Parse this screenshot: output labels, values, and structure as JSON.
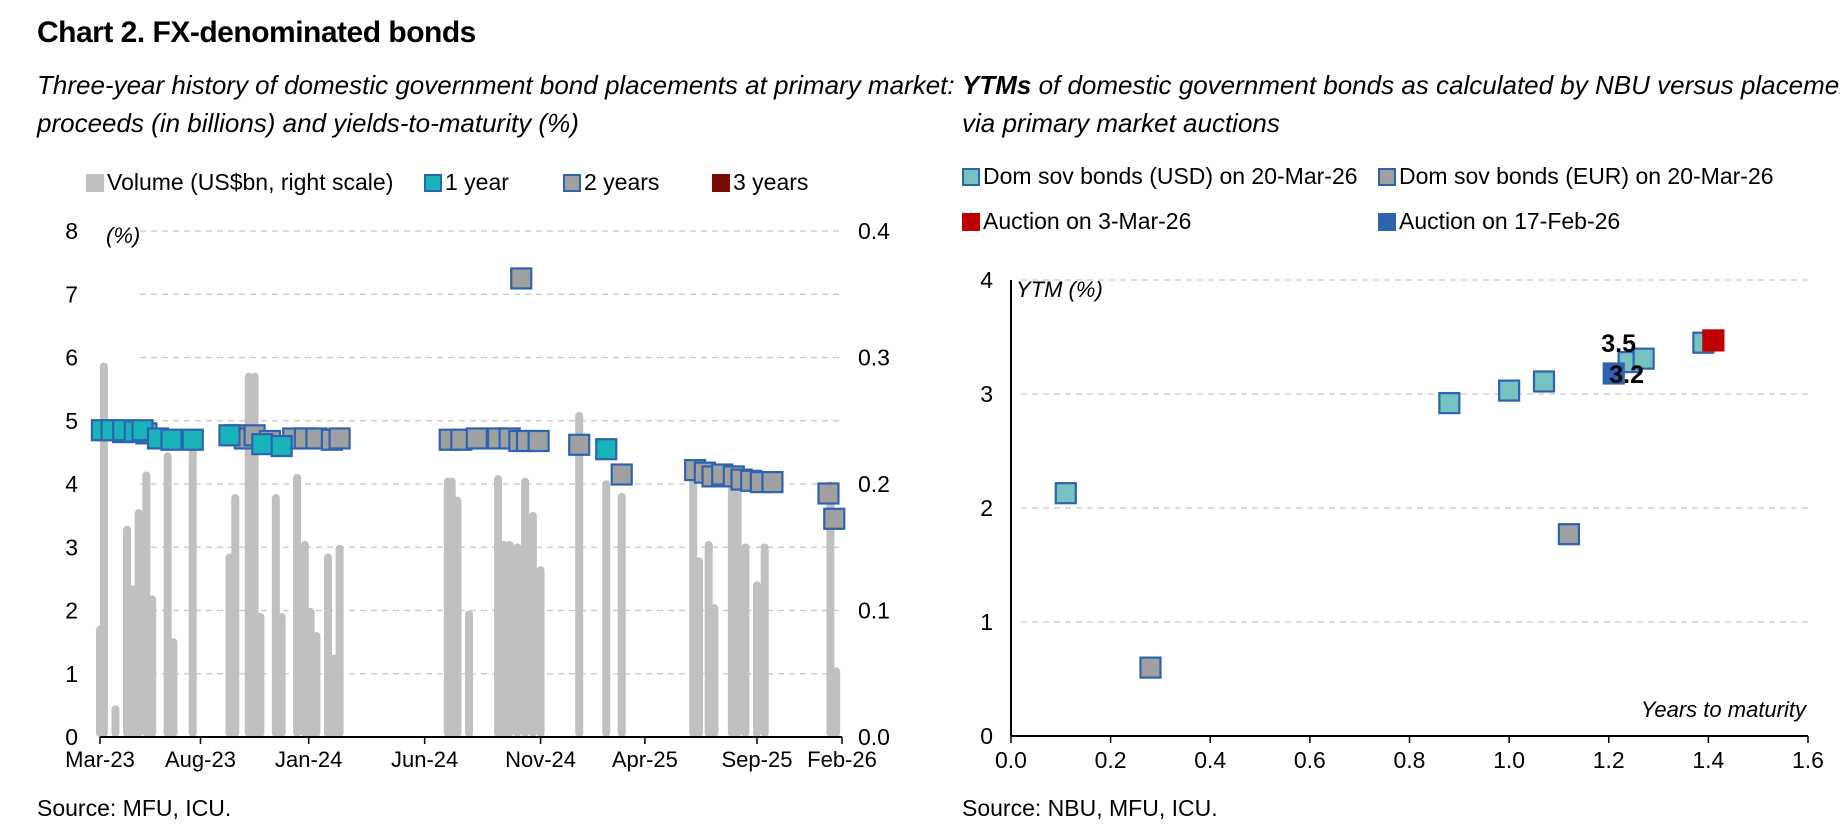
{
  "title": "Chart 2. FX-denominated bonds",
  "left": {
    "subtitle_line1": "Three-year history of domestic government bond placements at primary market:",
    "subtitle_line2": "proceeds (in billions) and yields-to-maturity (%)",
    "legend": [
      "Volume (US$bn, right scale)",
      "1 year",
      "2 years",
      "3 years"
    ],
    "source": "Source: MFU, ICU."
  },
  "right": {
    "subtitle_bold": "YTMs",
    "subtitle_rest": " of domestic government bonds as calculated by NBU versus placements",
    "subtitle_line2": "via primary market auctions",
    "legend": [
      "Dom sov bonds (USD) on 20-Mar-26",
      "Dom sov bonds (EUR) on 20-Mar-26",
      "Auction on 3-Mar-26",
      "Auction on 17-Feb-26"
    ],
    "source": "Source: NBU, MFU, ICU."
  },
  "colors": {
    "volume": "#c0c0c0",
    "one_year": "#19b4b9",
    "two_years": "#a0a0a0",
    "three_years": "#7a0c0c",
    "usd": "#76c2c0",
    "eur": "#a0a0a0",
    "auction_mar": "#c00000",
    "auction_feb": "#2e63b0",
    "edge": "#2e63b0",
    "grid": "#c8c8c8"
  },
  "chart_data": [
    {
      "type": "bar",
      "title": "Three-year history of domestic government bond placements at primary market: proceeds (in billions) and yields-to-maturity (%)",
      "ylabel": "(%)",
      "ylim": [
        0,
        8
      ],
      "yticks": [
        "0",
        "1",
        "2",
        "3",
        "4",
        "5",
        "6",
        "7",
        "8"
      ],
      "y2lim": [
        0,
        0.4
      ],
      "y2ticks": [
        "0.0",
        "0.1",
        "0.2",
        "0.3",
        "0.4"
      ],
      "x_tick_labels": [
        "Mar-23",
        "Aug-23",
        "Jan-24",
        "Jun-24",
        "Nov-24",
        "Apr-25",
        "Sep-25",
        "Feb-26"
      ],
      "grid": true,
      "legend_position": "top",
      "volume_series": {
        "name": "Volume (US$bn, right scale)",
        "values": [
          {
            "x": 0.0,
            "v": 0.088
          },
          {
            "x": 0.1,
            "v": 0.296
          },
          {
            "x": 0.4,
            "v": 0.025
          },
          {
            "x": 0.7,
            "v": 0.167
          },
          {
            "x": 0.85,
            "v": 0.12
          },
          {
            "x": 1.0,
            "v": 0.18
          },
          {
            "x": 1.2,
            "v": 0.21
          },
          {
            "x": 1.35,
            "v": 0.112
          },
          {
            "x": 1.75,
            "v": 0.225
          },
          {
            "x": 1.9,
            "v": 0.078
          },
          {
            "x": 2.4,
            "v": 0.235
          },
          {
            "x": 3.35,
            "v": 0.145
          },
          {
            "x": 3.5,
            "v": 0.192
          },
          {
            "x": 3.85,
            "v": 0.288
          },
          {
            "x": 4.0,
            "v": 0.288
          },
          {
            "x": 4.15,
            "v": 0.098
          },
          {
            "x": 4.55,
            "v": 0.192
          },
          {
            "x": 4.7,
            "v": 0.098
          },
          {
            "x": 5.1,
            "v": 0.208
          },
          {
            "x": 5.3,
            "v": 0.155
          },
          {
            "x": 5.45,
            "v": 0.102
          },
          {
            "x": 5.6,
            "v": 0.083
          },
          {
            "x": 5.9,
            "v": 0.145
          },
          {
            "x": 6.05,
            "v": 0.065
          },
          {
            "x": 6.2,
            "v": 0.152
          },
          {
            "x": 9.0,
            "v": 0.205
          },
          {
            "x": 9.1,
            "v": 0.205
          },
          {
            "x": 9.25,
            "v": 0.19
          },
          {
            "x": 9.55,
            "v": 0.1
          },
          {
            "x": 10.3,
            "v": 0.207
          },
          {
            "x": 10.45,
            "v": 0.155
          },
          {
            "x": 10.6,
            "v": 0.155
          },
          {
            "x": 10.8,
            "v": 0.153
          },
          {
            "x": 11.0,
            "v": 0.205
          },
          {
            "x": 11.2,
            "v": 0.178
          },
          {
            "x": 11.4,
            "v": 0.135
          },
          {
            "x": 12.4,
            "v": 0.257
          },
          {
            "x": 13.1,
            "v": 0.203
          },
          {
            "x": 13.5,
            "v": 0.193
          },
          {
            "x": 15.35,
            "v": 0.212
          },
          {
            "x": 15.5,
            "v": 0.142
          },
          {
            "x": 15.75,
            "v": 0.155
          },
          {
            "x": 15.9,
            "v": 0.105
          },
          {
            "x": 16.35,
            "v": 0.203
          },
          {
            "x": 16.5,
            "v": 0.2
          },
          {
            "x": 16.7,
            "v": 0.153
          },
          {
            "x": 17.0,
            "v": 0.123
          },
          {
            "x": 17.2,
            "v": 0.153
          },
          {
            "x": 18.9,
            "v": 0.202
          },
          {
            "x": 19.05,
            "v": 0.055
          }
        ]
      },
      "series": [
        {
          "name": "1 year",
          "points": [
            {
              "x": 0.05,
              "y": 4.85
            },
            {
              "x": 0.3,
              "y": 4.85
            },
            {
              "x": 0.6,
              "y": 4.85
            },
            {
              "x": 0.9,
              "y": 4.83
            },
            {
              "x": 1.1,
              "y": 4.85
            },
            {
              "x": 1.5,
              "y": 4.72
            },
            {
              "x": 1.85,
              "y": 4.7
            },
            {
              "x": 2.4,
              "y": 4.7
            },
            {
              "x": 3.35,
              "y": 4.77
            },
            {
              "x": 4.2,
              "y": 4.63
            },
            {
              "x": 4.7,
              "y": 4.6
            },
            {
              "x": 13.1,
              "y": 4.55
            }
          ]
        },
        {
          "name": "2 years",
          "points": [
            {
              "x": 0.6,
              "y": 4.82
            },
            {
              "x": 1.2,
              "y": 4.8
            },
            {
              "x": 3.5,
              "y": 4.77
            },
            {
              "x": 3.75,
              "y": 4.72
            },
            {
              "x": 4.0,
              "y": 4.77
            },
            {
              "x": 4.4,
              "y": 4.68
            },
            {
              "x": 5.0,
              "y": 4.72
            },
            {
              "x": 5.3,
              "y": 4.72
            },
            {
              "x": 5.6,
              "y": 4.72
            },
            {
              "x": 6.0,
              "y": 4.7
            },
            {
              "x": 6.2,
              "y": 4.72
            },
            {
              "x": 9.05,
              "y": 4.7
            },
            {
              "x": 9.35,
              "y": 4.7
            },
            {
              "x": 9.75,
              "y": 4.72
            },
            {
              "x": 10.3,
              "y": 4.72
            },
            {
              "x": 10.6,
              "y": 4.72
            },
            {
              "x": 10.85,
              "y": 4.68
            },
            {
              "x": 11.05,
              "y": 4.68
            },
            {
              "x": 11.35,
              "y": 4.68
            },
            {
              "x": 10.9,
              "y": 7.25
            },
            {
              "x": 12.4,
              "y": 4.62
            },
            {
              "x": 13.5,
              "y": 4.15
            },
            {
              "x": 15.4,
              "y": 4.22
            },
            {
              "x": 15.65,
              "y": 4.18
            },
            {
              "x": 15.85,
              "y": 4.12
            },
            {
              "x": 16.1,
              "y": 4.15
            },
            {
              "x": 16.4,
              "y": 4.12
            },
            {
              "x": 16.6,
              "y": 4.07
            },
            {
              "x": 16.85,
              "y": 4.05
            },
            {
              "x": 17.1,
              "y": 4.03
            },
            {
              "x": 17.4,
              "y": 4.03
            },
            {
              "x": 18.85,
              "y": 3.85
            },
            {
              "x": 19.0,
              "y": 3.45
            }
          ]
        },
        {
          "name": "3 years",
          "points": []
        }
      ]
    },
    {
      "type": "scatter",
      "title": "YTMs of domestic government bonds as calculated by NBU versus placements via primary market auctions",
      "xlabel": "Years to maturity",
      "ylabel": "YTM (%)",
      "xlim": [
        0,
        1.6
      ],
      "xticks": [
        "0.0",
        "0.2",
        "0.4",
        "0.6",
        "0.8",
        "1.0",
        "1.2",
        "1.4",
        "1.6"
      ],
      "ylim": [
        0,
        4
      ],
      "yticks": [
        "0",
        "1",
        "2",
        "3",
        "4"
      ],
      "grid": true,
      "legend_position": "top",
      "series": [
        {
          "name": "Dom sov bonds (USD) on 20-Mar-26",
          "points": [
            {
              "x": 0.11,
              "y": 2.13
            },
            {
              "x": 0.88,
              "y": 2.92
            },
            {
              "x": 1.0,
              "y": 3.03
            },
            {
              "x": 1.07,
              "y": 3.11
            },
            {
              "x": 1.24,
              "y": 3.28
            },
            {
              "x": 1.27,
              "y": 3.31
            },
            {
              "x": 1.39,
              "y": 3.45
            }
          ]
        },
        {
          "name": "Dom sov bonds (EUR) on 20-Mar-26",
          "points": [
            {
              "x": 0.28,
              "y": 0.6
            },
            {
              "x": 1.12,
              "y": 1.77
            }
          ]
        },
        {
          "name": "Auction on 3-Mar-26",
          "points": [
            {
              "x": 1.41,
              "y": 3.47
            }
          ]
        },
        {
          "name": "Auction on 17-Feb-26",
          "points": [
            {
              "x": 1.21,
              "y": 3.18
            }
          ]
        }
      ],
      "annotations": [
        "3.5",
        "3.2"
      ]
    }
  ]
}
